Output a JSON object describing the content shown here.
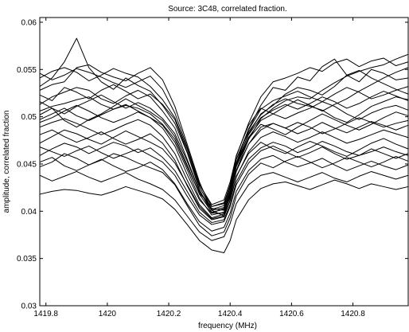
{
  "chart_data": {
    "type": "line",
    "title": "Source: 3C48, correlated fraction.",
    "xlabel": "frequency (MHz)",
    "ylabel": "amplitude, correlated fraction",
    "xlim": [
      1419.78,
      1420.98
    ],
    "ylim": [
      0.03,
      0.0605
    ],
    "xticks": [
      1419.8,
      1420,
      1420.2,
      1420.4,
      1420.6,
      1420.8
    ],
    "xtick_labels": [
      "1419.8",
      "1420",
      "1420.2",
      "1420.4",
      "1420.6",
      "1420.8"
    ],
    "yticks": [
      0.03,
      0.035,
      0.04,
      0.045,
      0.05,
      0.055,
      0.06
    ],
    "ytick_labels": [
      "0.03",
      "0.035",
      "0.04",
      "0.045",
      "0.05",
      "0.055",
      "0.06"
    ],
    "grid": false,
    "legend": "none",
    "x": [
      1419.78,
      1419.82,
      1419.86,
      1419.9,
      1419.94,
      1419.98,
      1420.02,
      1420.06,
      1420.1,
      1420.14,
      1420.18,
      1420.22,
      1420.26,
      1420.3,
      1420.34,
      1420.38,
      1420.4,
      1420.42,
      1420.46,
      1420.5,
      1420.54,
      1420.58,
      1420.62,
      1420.66,
      1420.7,
      1420.74,
      1420.78,
      1420.82,
      1420.86,
      1420.9,
      1420.94,
      1420.98
    ],
    "series": [
      {
        "values": [
          0.0532,
          0.0541,
          0.0558,
          0.0583,
          0.0552,
          0.0537,
          0.0529,
          0.0541,
          0.0533,
          0.0527,
          0.0512,
          0.0493,
          0.0462,
          0.0423,
          0.0398,
          0.0398,
          0.0421,
          0.0451,
          0.0487,
          0.0512,
          0.0531,
          0.0528,
          0.0542,
          0.0538,
          0.0553,
          0.0561,
          0.0544,
          0.0537,
          0.055,
          0.0546,
          0.0539,
          0.0541
        ]
      },
      {
        "values": [
          0.0541,
          0.0548,
          0.0552,
          0.0547,
          0.0538,
          0.0544,
          0.0551,
          0.0546,
          0.0542,
          0.0532,
          0.0518,
          0.0499,
          0.0466,
          0.0428,
          0.0407,
          0.0412,
          0.0431,
          0.0458,
          0.0493,
          0.0521,
          0.0537,
          0.0541,
          0.0546,
          0.0552,
          0.0548,
          0.0557,
          0.0561,
          0.0553,
          0.0559,
          0.0562,
          0.0554,
          0.0558
        ]
      },
      {
        "values": [
          0.0528,
          0.0534,
          0.0537,
          0.0552,
          0.0555,
          0.0547,
          0.0542,
          0.0538,
          0.0546,
          0.0552,
          0.0539,
          0.0511,
          0.0471,
          0.0431,
          0.0401,
          0.0395,
          0.0418,
          0.0449,
          0.0482,
          0.0503,
          0.0512,
          0.0524,
          0.0531,
          0.0528,
          0.0523,
          0.0532,
          0.0544,
          0.0549,
          0.0541,
          0.0535,
          0.0529,
          0.0524
        ]
      },
      {
        "values": [
          0.0513,
          0.0521,
          0.0526,
          0.0531,
          0.0528,
          0.0519,
          0.0514,
          0.0522,
          0.0528,
          0.0521,
          0.0506,
          0.0488,
          0.0455,
          0.0421,
          0.0403,
          0.0401,
          0.0414,
          0.0443,
          0.0476,
          0.0498,
          0.0509,
          0.0517,
          0.0521,
          0.0519,
          0.0528,
          0.0536,
          0.0543,
          0.0548,
          0.0552,
          0.0555,
          0.0561,
          0.0566
        ]
      },
      {
        "values": [
          0.0506,
          0.0511,
          0.0514,
          0.0518,
          0.0521,
          0.0513,
          0.0508,
          0.0512,
          0.0509,
          0.0503,
          0.0492,
          0.0476,
          0.0447,
          0.0419,
          0.0405,
          0.0409,
          0.0427,
          0.0455,
          0.0484,
          0.0502,
          0.0513,
          0.0519,
          0.0514,
          0.0511,
          0.0507,
          0.0499,
          0.0494,
          0.0502,
          0.0511,
          0.0516,
          0.0521,
          0.0518
        ]
      },
      {
        "values": [
          0.0497,
          0.0503,
          0.0509,
          0.0501,
          0.0496,
          0.0502,
          0.0508,
          0.0513,
          0.0506,
          0.0499,
          0.0488,
          0.0469,
          0.0439,
          0.0412,
          0.0398,
          0.0403,
          0.0422,
          0.0449,
          0.0478,
          0.0496,
          0.0503,
          0.0498,
          0.0504,
          0.0509,
          0.0516,
          0.0511,
          0.0503,
          0.0497,
          0.0504,
          0.0509,
          0.0512,
          0.0507
        ]
      },
      {
        "values": [
          0.0489,
          0.0494,
          0.0498,
          0.0493,
          0.0487,
          0.0481,
          0.0486,
          0.0492,
          0.0497,
          0.0491,
          0.0479,
          0.0461,
          0.0433,
          0.0407,
          0.0393,
          0.0397,
          0.0416,
          0.0442,
          0.0471,
          0.0489,
          0.0493,
          0.0488,
          0.0494,
          0.0489,
          0.0482,
          0.0487,
          0.0493,
          0.0499,
          0.0494,
          0.0489,
          0.0493,
          0.0496
        ]
      },
      {
        "values": [
          0.0481,
          0.0486,
          0.0479,
          0.0473,
          0.0478,
          0.0484,
          0.0477,
          0.0471,
          0.0476,
          0.0482,
          0.0472,
          0.0454,
          0.0427,
          0.0403,
          0.0391,
          0.0394,
          0.0411,
          0.0436,
          0.0463,
          0.0478,
          0.0484,
          0.0479,
          0.0473,
          0.0478,
          0.0484,
          0.0478,
          0.0472,
          0.0476,
          0.0481,
          0.0486,
          0.0482,
          0.0478
        ]
      },
      {
        "values": [
          0.0468,
          0.0463,
          0.0458,
          0.0464,
          0.0469,
          0.0462,
          0.0456,
          0.0461,
          0.0466,
          0.0459,
          0.0452,
          0.0438,
          0.0416,
          0.0396,
          0.0386,
          0.0389,
          0.0405,
          0.0428,
          0.0451,
          0.0464,
          0.0469,
          0.0463,
          0.0457,
          0.0462,
          0.0468,
          0.0461,
          0.0455,
          0.0459,
          0.0463,
          0.0468,
          0.0463,
          0.0459
        ]
      },
      {
        "values": [
          0.0452,
          0.0457,
          0.0448,
          0.0443,
          0.0449,
          0.0455,
          0.0448,
          0.0442,
          0.0446,
          0.0452,
          0.0444,
          0.0429,
          0.0408,
          0.0389,
          0.0379,
          0.0383,
          0.0398,
          0.0421,
          0.0443,
          0.0455,
          0.0459,
          0.0452,
          0.0447,
          0.0451,
          0.0456,
          0.0449,
          0.0443,
          0.0448,
          0.0453,
          0.0448,
          0.0444,
          0.0449
        ]
      },
      {
        "values": [
          0.0438,
          0.0432,
          0.0437,
          0.0442,
          0.0436,
          0.0431,
          0.0436,
          0.0441,
          0.0434,
          0.0429,
          0.0423,
          0.0412,
          0.0395,
          0.0378,
          0.0369,
          0.0373,
          0.0387,
          0.0408,
          0.0428,
          0.0438,
          0.0441,
          0.0436,
          0.0431,
          0.0436,
          0.0441,
          0.0435,
          0.0431,
          0.0437,
          0.0442,
          0.0438,
          0.0434,
          0.0438
        ]
      },
      {
        "values": [
          0.0418,
          0.0421,
          0.0423,
          0.0422,
          0.0419,
          0.0417,
          0.0421,
          0.0426,
          0.0422,
          0.0418,
          0.0413,
          0.0402,
          0.0386,
          0.0369,
          0.0359,
          0.0356,
          0.0369,
          0.0391,
          0.0412,
          0.0424,
          0.0429,
          0.0431,
          0.0427,
          0.0423,
          0.0428,
          0.0433,
          0.0429,
          0.0424,
          0.0429,
          0.0426,
          0.0423,
          0.0426
        ]
      },
      {
        "values": [
          0.0523,
          0.0517,
          0.0531,
          0.0526,
          0.0519,
          0.0528,
          0.0534,
          0.0527,
          0.0519,
          0.0524,
          0.0513,
          0.0497,
          0.0463,
          0.0426,
          0.0402,
          0.0406,
          0.0425,
          0.0455,
          0.0486,
          0.0508,
          0.0517,
          0.0522,
          0.0527,
          0.0521,
          0.0516,
          0.0524,
          0.0531,
          0.0526,
          0.0519,
          0.0523,
          0.0528,
          0.0532
        ]
      },
      {
        "values": [
          0.0502,
          0.0509,
          0.0496,
          0.0489,
          0.0497,
          0.0503,
          0.0511,
          0.0519,
          0.0512,
          0.0505,
          0.0496,
          0.0479,
          0.0449,
          0.0418,
          0.0399,
          0.0402,
          0.0419,
          0.0447,
          0.0477,
          0.0492,
          0.0487,
          0.0481,
          0.0489,
          0.0496,
          0.0503,
          0.0497,
          0.0491,
          0.0486,
          0.0492,
          0.0499,
          0.0505,
          0.0501
        ]
      },
      {
        "values": [
          0.0472,
          0.0479,
          0.0486,
          0.0482,
          0.0476,
          0.0471,
          0.0478,
          0.0485,
          0.0479,
          0.0473,
          0.0466,
          0.0451,
          0.0428,
          0.0405,
          0.0392,
          0.0395,
          0.0412,
          0.0437,
          0.0461,
          0.0473,
          0.0466,
          0.0461,
          0.0468,
          0.0474,
          0.0469,
          0.0463,
          0.0458,
          0.0465,
          0.0472,
          0.0477,
          0.0471,
          0.0466
        ]
      },
      {
        "values": [
          0.0546,
          0.0539,
          0.0544,
          0.0551,
          0.0547,
          0.0542,
          0.0536,
          0.0531,
          0.0537,
          0.0543,
          0.0529,
          0.0504,
          0.0468,
          0.0429,
          0.0405,
          0.0408,
          0.0428,
          0.0459,
          0.0491,
          0.0509,
          0.0503,
          0.0511,
          0.0518,
          0.0512,
          0.0506,
          0.0513,
          0.0519,
          0.0527,
          0.0534,
          0.0541,
          0.0547,
          0.0552
        ]
      },
      {
        "values": [
          0.0459,
          0.0466,
          0.0472,
          0.0468,
          0.0461,
          0.0467,
          0.0473,
          0.0469,
          0.0462,
          0.0467,
          0.0457,
          0.0443,
          0.0421,
          0.0399,
          0.0388,
          0.0391,
          0.0407,
          0.0431,
          0.0455,
          0.0467,
          0.0473,
          0.0469,
          0.0462,
          0.0467,
          0.0474,
          0.0469,
          0.0463,
          0.0459,
          0.0466,
          0.0461,
          0.0456,
          0.0461
        ]
      },
      {
        "values": [
          0.0516,
          0.0509,
          0.0503,
          0.0511,
          0.0517,
          0.0523,
          0.0516,
          0.0509,
          0.0515,
          0.0509,
          0.0498,
          0.0482,
          0.0453,
          0.0421,
          0.0401,
          0.0404,
          0.0422,
          0.0451,
          0.0481,
          0.0499,
          0.0507,
          0.0513,
          0.0508,
          0.0514,
          0.0521,
          0.0516,
          0.0509,
          0.0514,
          0.0521,
          0.0527,
          0.0522,
          0.0517
        ]
      },
      {
        "values": [
          0.0447,
          0.0452,
          0.0461,
          0.0456,
          0.0449,
          0.0454,
          0.0461,
          0.0457,
          0.0451,
          0.0446,
          0.0441,
          0.0428,
          0.0406,
          0.0385,
          0.0374,
          0.0378,
          0.0393,
          0.0416,
          0.0439,
          0.0451,
          0.0446,
          0.0453,
          0.0458,
          0.0452,
          0.0446,
          0.0451,
          0.0457,
          0.0452,
          0.0447,
          0.0452,
          0.0458,
          0.0453
        ]
      },
      {
        "values": [
          0.0494,
          0.0499,
          0.0506,
          0.0512,
          0.0506,
          0.0499,
          0.0494,
          0.0499,
          0.0505,
          0.0499,
          0.0491,
          0.0473,
          0.0444,
          0.0414,
          0.0396,
          0.0399,
          0.0416,
          0.0443,
          0.0471,
          0.0486,
          0.0493,
          0.0488,
          0.0482,
          0.0487,
          0.0494,
          0.0488,
          0.0483,
          0.0489,
          0.0495,
          0.0491,
          0.0486,
          0.0491
        ]
      }
    ]
  }
}
